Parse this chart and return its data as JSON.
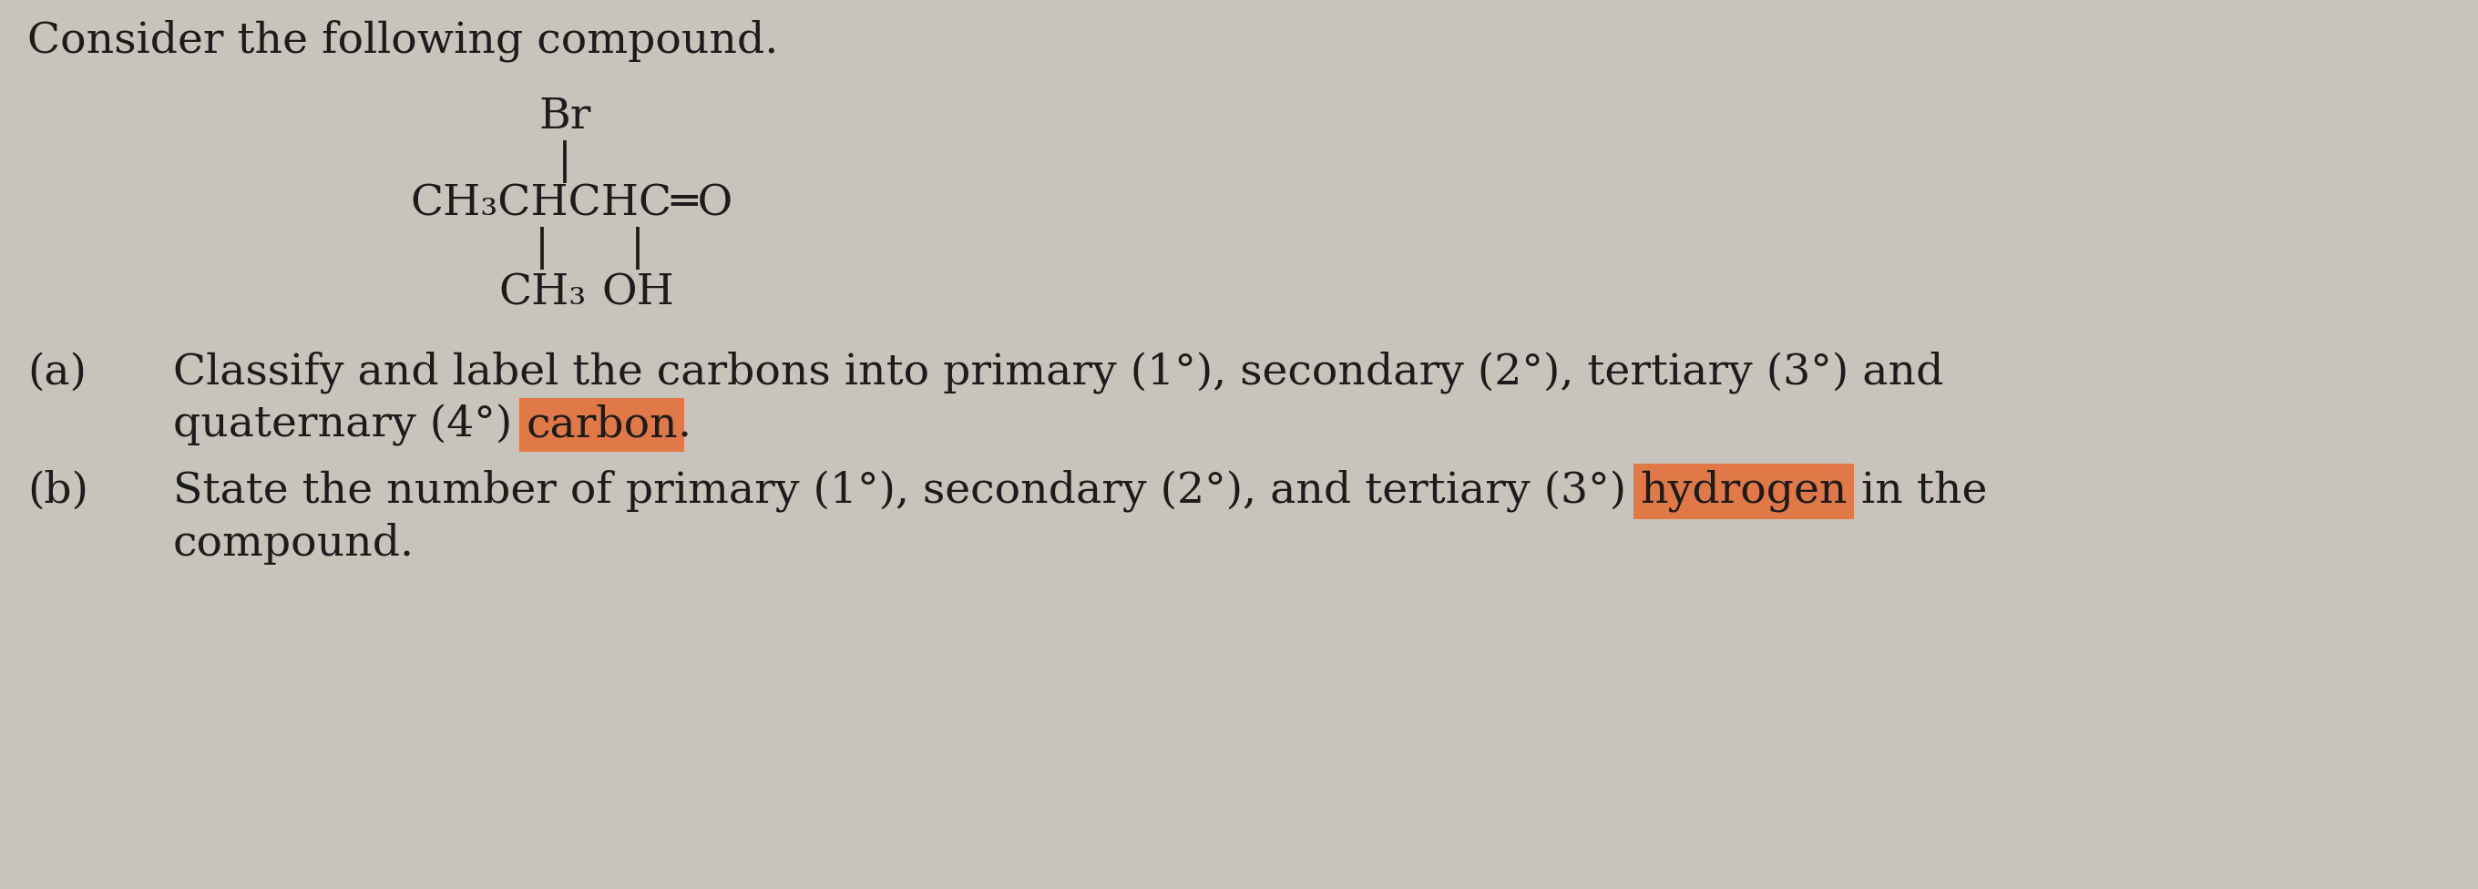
{
  "background_color": "#c8c3bb",
  "text_color": "#1c1c1c",
  "highlight_color": "#e07848",
  "fontfamily": "DejaVu Serif",
  "fontsize": 34,
  "title": "Consider the following compound.",
  "struct": {
    "br_text": "Br",
    "pipe1": "|",
    "main_line": "CH₃CHCHC═O",
    "pipe2": "|",
    "pipe3": "|",
    "ch3_text": "CH₃",
    "oh_text": "OH"
  },
  "qa_label": "(a)",
  "qa_line1": "Classify and label the carbons into primary (1°), secondary (2°), tertiary (3°) and",
  "qa_line2_pre": "quaternary (4°) ",
  "qa_highlight": "carbon",
  "qa_line2_post": ".",
  "qb_label": "(b)",
  "qb_line1_pre": "State the number of primary (1°), secondary (2°), and tertiary (3°) ",
  "qb_highlight": "hydrogen",
  "qb_line1_post": " in the",
  "qb_line2": "compound."
}
